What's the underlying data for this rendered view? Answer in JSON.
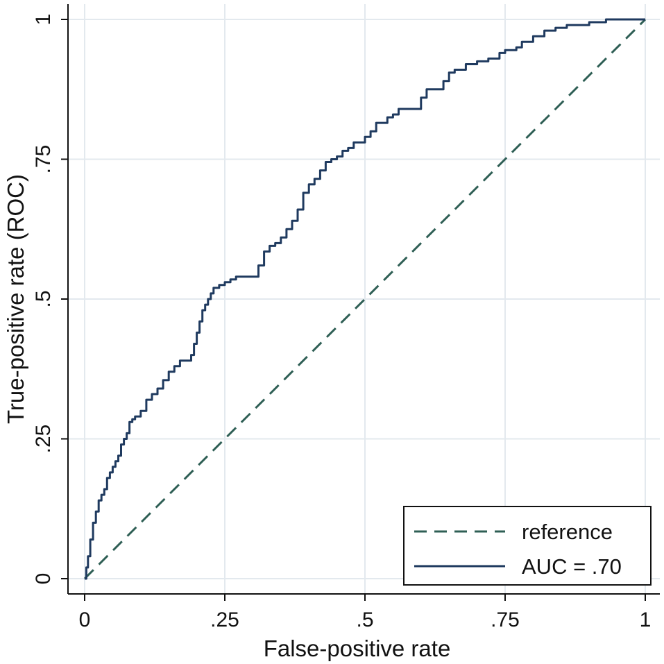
{
  "chart_data": {
    "type": "line",
    "title": "",
    "xlabel": "False-positive rate",
    "ylabel": "True-positive rate (ROC)",
    "xlim": [
      0,
      1
    ],
    "ylim": [
      0,
      1
    ],
    "grid": true,
    "x_ticks": [
      {
        "value": 0,
        "label": "0"
      },
      {
        "value": 0.25,
        "label": ".25"
      },
      {
        "value": 0.5,
        "label": ".5"
      },
      {
        "value": 0.75,
        "label": ".75"
      },
      {
        "value": 1,
        "label": "1"
      }
    ],
    "y_ticks": [
      {
        "value": 0,
        "label": "0"
      },
      {
        "value": 0.25,
        "label": ".25"
      },
      {
        "value": 0.5,
        "label": ".5"
      },
      {
        "value": 0.75,
        "label": ".75"
      },
      {
        "value": 1,
        "label": "1"
      }
    ],
    "legend_position": "bottom-right",
    "series": [
      {
        "name": "reference",
        "style": "dashed",
        "color": "#2f5f55",
        "x": [
          0,
          1
        ],
        "y": [
          0,
          1
        ]
      },
      {
        "name": "AUC = .70",
        "style": "solid",
        "color": "#1f3a5f",
        "x": [
          0,
          0.003,
          0.006,
          0.01,
          0.015,
          0.02,
          0.025,
          0.03,
          0.035,
          0.04,
          0.045,
          0.05,
          0.055,
          0.06,
          0.065,
          0.07,
          0.075,
          0.08,
          0.085,
          0.09,
          0.1,
          0.11,
          0.12,
          0.13,
          0.14,
          0.15,
          0.16,
          0.17,
          0.18,
          0.19,
          0.195,
          0.2,
          0.205,
          0.21,
          0.215,
          0.22,
          0.225,
          0.23,
          0.24,
          0.25,
          0.26,
          0.27,
          0.28,
          0.3,
          0.31,
          0.32,
          0.33,
          0.34,
          0.35,
          0.36,
          0.37,
          0.38,
          0.39,
          0.4,
          0.41,
          0.42,
          0.43,
          0.44,
          0.45,
          0.46,
          0.47,
          0.48,
          0.5,
          0.51,
          0.52,
          0.54,
          0.55,
          0.56,
          0.58,
          0.6,
          0.61,
          0.62,
          0.64,
          0.65,
          0.66,
          0.68,
          0.7,
          0.72,
          0.74,
          0.75,
          0.77,
          0.78,
          0.8,
          0.82,
          0.84,
          0.86,
          0.9,
          0.93,
          0.95,
          1.0
        ],
        "y": [
          0,
          0.02,
          0.04,
          0.07,
          0.1,
          0.12,
          0.14,
          0.15,
          0.16,
          0.18,
          0.19,
          0.2,
          0.21,
          0.22,
          0.24,
          0.25,
          0.26,
          0.28,
          0.285,
          0.29,
          0.3,
          0.32,
          0.33,
          0.34,
          0.355,
          0.37,
          0.38,
          0.39,
          0.39,
          0.4,
          0.42,
          0.44,
          0.46,
          0.48,
          0.49,
          0.5,
          0.51,
          0.52,
          0.525,
          0.53,
          0.535,
          0.54,
          0.54,
          0.54,
          0.56,
          0.585,
          0.595,
          0.6,
          0.61,
          0.625,
          0.64,
          0.66,
          0.69,
          0.705,
          0.715,
          0.73,
          0.745,
          0.75,
          0.755,
          0.765,
          0.77,
          0.78,
          0.79,
          0.8,
          0.815,
          0.825,
          0.83,
          0.84,
          0.84,
          0.86,
          0.875,
          0.875,
          0.89,
          0.905,
          0.91,
          0.92,
          0.925,
          0.93,
          0.94,
          0.945,
          0.95,
          0.96,
          0.97,
          0.98,
          0.985,
          0.99,
          0.995,
          1.0,
          1.0,
          1.0
        ]
      }
    ]
  }
}
